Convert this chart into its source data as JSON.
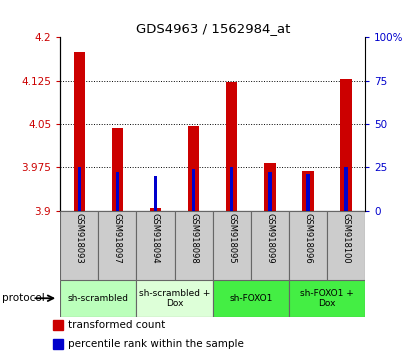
{
  "title": "GDS4963 / 1562984_at",
  "samples": [
    "GSM918093",
    "GSM918097",
    "GSM918094",
    "GSM918098",
    "GSM918095",
    "GSM918099",
    "GSM918096",
    "GSM918100"
  ],
  "red_values": [
    4.175,
    4.043,
    3.905,
    4.047,
    4.123,
    3.982,
    3.968,
    4.128
  ],
  "blue_values": [
    25.0,
    22.0,
    20.0,
    24.0,
    25.0,
    22.0,
    21.0,
    25.0
  ],
  "ylim_left": [
    3.9,
    4.2
  ],
  "ylim_right": [
    0,
    100
  ],
  "yticks_left": [
    3.9,
    3.975,
    4.05,
    4.125,
    4.2
  ],
  "yticks_right": [
    0,
    25,
    50,
    75,
    100
  ],
  "ytick_labels_left": [
    "3.9",
    "3.975",
    "4.05",
    "4.125",
    "4.2"
  ],
  "ytick_labels_right": [
    "0",
    "25",
    "50",
    "75",
    "100%"
  ],
  "red_color": "#cc0000",
  "blue_color": "#0000cc",
  "base_value": 3.9,
  "legend_red": "transformed count",
  "legend_blue": "percentile rank within the sample",
  "groups": [
    {
      "label": "sh-scrambled",
      "start": 0,
      "end": 1,
      "color": "#bbffbb"
    },
    {
      "label": "sh-scrambled +\nDox",
      "start": 2,
      "end": 3,
      "color": "#ddffd8"
    },
    {
      "label": "sh-FOXO1",
      "start": 4,
      "end": 5,
      "color": "#44ee44"
    },
    {
      "label": "sh-FOXO1 +\nDox",
      "start": 6,
      "end": 7,
      "color": "#44ee44"
    }
  ],
  "sample_bg": "#cccccc",
  "fig_bg": "#ffffff"
}
